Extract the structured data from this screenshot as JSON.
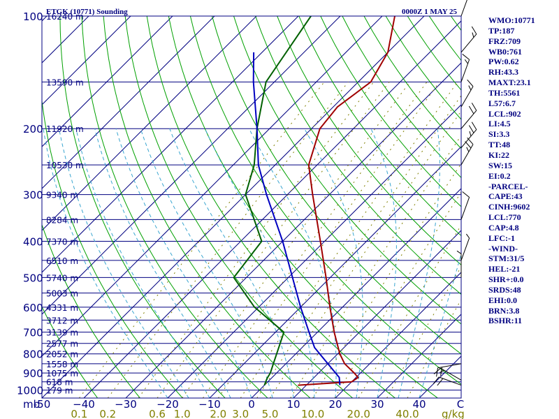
{
  "header": {
    "station": "ETGK (10771) Sounding",
    "time": "0000Z  1 MAY 25"
  },
  "colors": {
    "isobar": "#000080",
    "isotherm": "#000080",
    "dry_adiabat": "#00a000",
    "moist_adiabat": "#3aa6d0",
    "mixing_ratio": "#808000",
    "temperature": "#a00000",
    "dewpoint": "#006000",
    "parcel": "#0000c0",
    "wind_barb": "#000000",
    "labels": "#000080"
  },
  "axes": {
    "pressure_unit": "mb",
    "mixing_ratio_unit": "g/kg",
    "pressure_labels": [
      {
        "p": 100,
        "text": "100"
      },
      {
        "p": 200,
        "text": "200"
      },
      {
        "p": 300,
        "text": "300"
      },
      {
        "p": 400,
        "text": "400"
      },
      {
        "p": 500,
        "text": "500"
      },
      {
        "p": 600,
        "text": "600"
      },
      {
        "p": 700,
        "text": "700"
      },
      {
        "p": 800,
        "text": "800"
      },
      {
        "p": 900,
        "text": "900"
      },
      {
        "p": 1000,
        "text": "1000"
      }
    ],
    "height_labels": [
      {
        "p": 100,
        "text": "16240 m"
      },
      {
        "p": 150,
        "text": "13590 m"
      },
      {
        "p": 200,
        "text": "11920 m"
      },
      {
        "p": 250,
        "text": "10530 m"
      },
      {
        "p": 300,
        "text": "9340 m"
      },
      {
        "p": 350,
        "text": "8284 m"
      },
      {
        "p": 400,
        "text": "7370 m"
      },
      {
        "p": 450,
        "text": "6510 m"
      },
      {
        "p": 500,
        "text": "5740 m"
      },
      {
        "p": 550,
        "text": "5003 m"
      },
      {
        "p": 600,
        "text": "4331 m"
      },
      {
        "p": 650,
        "text": "3712 m"
      },
      {
        "p": 700,
        "text": "3139 m"
      },
      {
        "p": 750,
        "text": "2577 m"
      },
      {
        "p": 800,
        "text": "2052 m"
      },
      {
        "p": 850,
        "text": "1558 m"
      },
      {
        "p": 900,
        "text": "1075 m"
      },
      {
        "p": 950,
        "text": "618 m"
      },
      {
        "p": 1000,
        "text": "179 m"
      }
    ],
    "temperature_labels": [
      {
        "t": -50,
        "text": "-50"
      },
      {
        "t": -40,
        "text": "−40"
      },
      {
        "t": -30,
        "text": "−30"
      },
      {
        "t": -20,
        "text": "−20"
      },
      {
        "t": -10,
        "text": "−10"
      },
      {
        "t": 0,
        "text": "0"
      },
      {
        "t": 10,
        "text": "10"
      },
      {
        "t": 20,
        "text": "20"
      },
      {
        "t": 30,
        "text": "30"
      },
      {
        "t": 40,
        "text": "40"
      }
    ],
    "temperature_last_label": "C",
    "mixing_ratio_labels": [
      "0.1",
      "0.2",
      "0.6",
      "1.0",
      "2.0",
      "3.0",
      "5.0",
      "10.0",
      "20.0",
      "40.0"
    ],
    "mixing_ratio_values": [
      0.1,
      0.2,
      0.6,
      1.0,
      2.0,
      3.0,
      5.0,
      10.0,
      20.0,
      40.0
    ]
  },
  "chart_data": {
    "type": "line",
    "title": "ETGK (10771) Sounding",
    "subtitle": "0000Z  1 MAY 25",
    "x_unit": "C",
    "y_unit": "mb",
    "y_scale": "log",
    "ylim": [
      1050,
      100
    ],
    "xlim_at_1050mb": [
      -50,
      50
    ],
    "series": [
      {
        "name": "temperature",
        "points": [
          {
            "p": 970,
            "t": 8.0
          },
          {
            "p": 950,
            "t": 20.0
          },
          {
            "p": 925,
            "t": 20.5
          },
          {
            "p": 900,
            "t": 18.5
          },
          {
            "p": 850,
            "t": 14.0
          },
          {
            "p": 800,
            "t": 10.5
          },
          {
            "p": 700,
            "t": 4.0
          },
          {
            "p": 600,
            "t": -3.0
          },
          {
            "p": 500,
            "t": -11.0
          },
          {
            "p": 400,
            "t": -21.0
          },
          {
            "p": 300,
            "t": -34.0
          },
          {
            "p": 250,
            "t": -42.0
          },
          {
            "p": 200,
            "t": -48.0
          },
          {
            "p": 175,
            "t": -49.0
          },
          {
            "p": 150,
            "t": -47.0
          },
          {
            "p": 125,
            "t": -50.0
          },
          {
            "p": 100,
            "t": -57.0
          }
        ]
      },
      {
        "name": "dewpoint",
        "points": [
          {
            "p": 970,
            "t": 0.0
          },
          {
            "p": 930,
            "t": -1.0
          },
          {
            "p": 900,
            "t": -1.5
          },
          {
            "p": 850,
            "t": -3.0
          },
          {
            "p": 700,
            "t": -8.0
          },
          {
            "p": 600,
            "t": -21.0
          },
          {
            "p": 500,
            "t": -33.0
          },
          {
            "p": 400,
            "t": -35.0
          },
          {
            "p": 300,
            "t": -50.0
          },
          {
            "p": 250,
            "t": -55.0
          },
          {
            "p": 200,
            "t": -63.0
          },
          {
            "p": 150,
            "t": -72.0
          },
          {
            "p": 100,
            "t": -77.0
          }
        ]
      },
      {
        "name": "parcel",
        "points": [
          {
            "p": 970,
            "t": 18.0
          },
          {
            "p": 925,
            "t": 16.0
          },
          {
            "p": 850,
            "t": 10.0
          },
          {
            "p": 770,
            "t": 3.0
          },
          {
            "p": 700,
            "t": -2.0
          },
          {
            "p": 600,
            "t": -10.0
          },
          {
            "p": 500,
            "t": -19.0
          },
          {
            "p": 400,
            "t": -30.0
          },
          {
            "p": 300,
            "t": -45.0
          },
          {
            "p": 250,
            "t": -54.0
          },
          {
            "p": 200,
            "t": -63.0
          },
          {
            "p": 150,
            "t": -75.0
          },
          {
            "p": 125,
            "t": -82.0
          }
        ]
      }
    ],
    "grid": true,
    "legend": "none"
  },
  "wind_barbs": [
    {
      "p": 970,
      "speed_kt": 20,
      "dir_deg": 290
    },
    {
      "p": 940,
      "speed_kt": 15,
      "dir_deg": 300
    },
    {
      "p": 850,
      "speed_kt": 20,
      "dir_deg": 260
    },
    {
      "p": 500,
      "speed_kt": 5,
      "dir_deg": 360
    },
    {
      "p": 450,
      "speed_kt": 5,
      "dir_deg": 20
    },
    {
      "p": 350,
      "speed_kt": 10,
      "dir_deg": 20
    },
    {
      "p": 250,
      "speed_kt": 25,
      "dir_deg": 30
    },
    {
      "p": 225,
      "speed_kt": 25,
      "dir_deg": 40
    },
    {
      "p": 200,
      "speed_kt": 20,
      "dir_deg": 40
    },
    {
      "p": 175,
      "speed_kt": 15,
      "dir_deg": 30
    },
    {
      "p": 150,
      "speed_kt": 15,
      "dir_deg": 20
    },
    {
      "p": 125,
      "speed_kt": 15,
      "dir_deg": 40
    },
    {
      "p": 100,
      "speed_kt": 10,
      "dir_deg": 20
    }
  ],
  "parameters": [
    "WMO:10771",
    "TP:187",
    "FRZ:709",
    "WB0:761",
    "PW:0.62",
    "RH:43.3",
    "MAXT:23.1",
    "TH:5561",
    "L57:6.7",
    "LCL:902",
    "LI:4.5",
    "SI:3.3",
    "TT:48",
    "KI:22",
    "SW:15",
    "EI:0.2",
    "-PARCEL-",
    "CAPE:43",
    "CINH:9602",
    "LCL:770",
    "CAP:4.8",
    "LFC:-1",
    "-WIND-",
    "STM:31/5",
    "HEL:-21",
    "SHR+:0.0",
    "SRDS:48",
    "EHI:0.0",
    "BRN:3.8",
    "BSHR:11"
  ]
}
